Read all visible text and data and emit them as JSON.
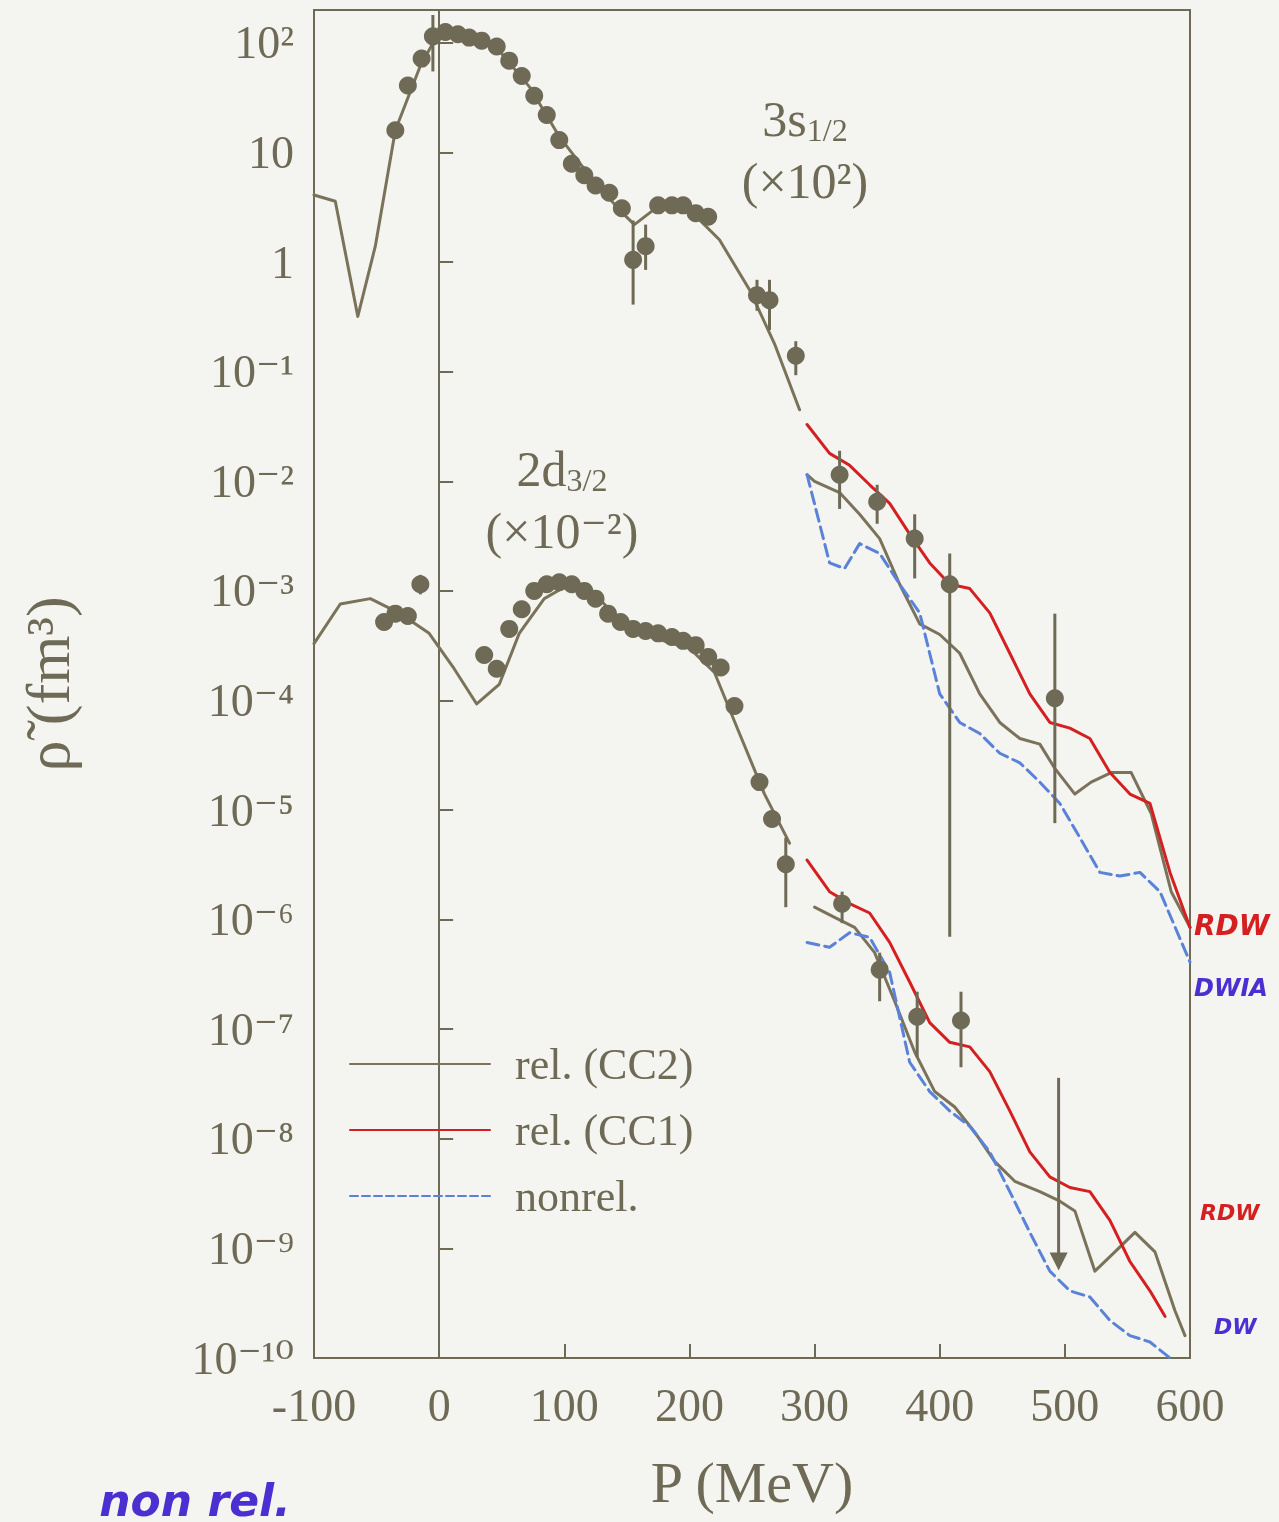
{
  "chart_data": {
    "type": "line",
    "xlabel": "P (MeV)",
    "ylabel": "ρ̃ (fm³)",
    "xlim": [
      -100,
      600
    ],
    "xticks": [
      -100,
      0,
      100,
      200,
      300,
      400,
      500,
      600
    ],
    "ylim": [
      1e-10,
      200
    ],
    "log": "y",
    "yticks": [
      {
        "value": 1e-10,
        "label": "10⁻¹⁰"
      },
      {
        "value": 1e-09,
        "label": "10⁻⁹"
      },
      {
        "value": 1e-08,
        "label": "10⁻⁸"
      },
      {
        "value": 1e-07,
        "label": "10⁻⁷"
      },
      {
        "value": 1e-06,
        "label": "10⁻⁶"
      },
      {
        "value": 1e-05,
        "label": "10⁻⁵"
      },
      {
        "value": 0.0001,
        "label": "10⁻⁴"
      },
      {
        "value": 0.001,
        "label": "10⁻³"
      },
      {
        "value": 0.01,
        "label": "10⁻²"
      },
      {
        "value": 0.1,
        "label": "10⁻¹"
      },
      1,
      10,
      {
        "value": 100,
        "label": "10²"
      }
    ],
    "legend": "bottom left",
    "series": [
      {
        "name": "rel. (CC2)",
        "color": "#7a735a",
        "line_style": "solid",
        "x": [
          -100,
          -83,
          -65,
          -51,
          -35,
          -15,
          0,
          24,
          48,
          72,
          96,
          120,
          144,
          156,
          176,
          200,
          224,
          248,
          268,
          288,
          291,
          294,
          300,
          320,
          336,
          352,
          368,
          384,
          400,
          416,
          432,
          448,
          464,
          480,
          492,
          508,
          521,
          537,
          553,
          569,
          585,
          600
        ],
        "values": [
          4.1,
          3.6,
          0.32,
          1.4,
          16,
          62,
          126,
          126,
          85,
          40,
          14,
          6.2,
          3.0,
          2.2,
          3.3,
          3.0,
          1.6,
          0.56,
          0.18,
          0.045,
          null,
          0.0115,
          0.01,
          0.0079,
          0.005,
          0.003,
          0.00115,
          0.0005,
          0.0004,
          0.00027,
          0.000115,
          6.3e-05,
          4.5e-05,
          4e-05,
          2.4e-05,
          1.4e-05,
          1.8e-05,
          2.2e-05,
          2.2e-05,
          9.3e-06,
          1.8e-06,
          8.5e-07
        ]
      },
      {
        "name": "rel. (CC1)",
        "color": "#d42020",
        "line_style": "solid",
        "x": [
          294,
          312,
          328,
          344,
          360,
          376,
          392,
          408,
          424,
          440,
          456,
          472,
          488,
          504,
          520,
          536,
          552,
          568,
          584,
          600
        ],
        "values": [
          0.033,
          0.018,
          0.014,
          0.0093,
          0.0063,
          0.0033,
          0.0018,
          0.00115,
          0.00105,
          0.00063,
          0.00027,
          0.000115,
          6.3e-05,
          5.6e-05,
          4.5e-05,
          2.2e-05,
          1.4e-05,
          1.15e-05,
          2.7e-06,
          8.5e-07
        ]
      },
      {
        "name": "nonrel.",
        "color": "#5a82d8",
        "line_style": "dashed",
        "x": [
          294,
          312,
          324,
          336,
          352,
          368,
          384,
          400,
          416,
          432,
          448,
          464,
          480,
          496,
          512,
          528,
          544,
          560,
          576,
          600
        ],
        "values": [
          0.0115,
          0.0018,
          0.0016,
          0.0027,
          0.0022,
          0.00115,
          0.00063,
          0.000115,
          6.3e-05,
          5e-05,
          3.3e-05,
          2.7e-05,
          1.8e-05,
          1.15e-05,
          5.6e-06,
          2.7e-06,
          2.5e-06,
          2.7e-06,
          1.8e-06,
          4.1e-07
        ]
      },
      {
        "type": "scatter",
        "color": "#6e6a55",
        "marker": "circle",
        "x": [
          -35,
          -25,
          -14,
          -5,
          5,
          15,
          24,
          34,
          46,
          56,
          66,
          76,
          86,
          96,
          106,
          116,
          125,
          136,
          146,
          155,
          165,
          175,
          186,
          195,
          205,
          215,
          254,
          264,
          285,
          320,
          350,
          380,
          408,
          492
        ],
        "values": [
          16,
          41,
          72,
          115,
          126,
          120,
          112,
          105,
          93,
          69,
          50,
          33,
          22,
          13,
          7.9,
          6.2,
          5.0,
          4.3,
          3.1,
          1.05,
          1.4,
          3.3,
          3.3,
          3.3,
          2.8,
          2.6,
          0.5,
          0.45,
          0.14,
          0.0115,
          0.0065,
          0.003,
          0.00115,
          0.000105
        ],
        "errors": [
          null,
          null,
          null,
          [
            55,
            180
          ],
          null,
          null,
          null,
          null,
          null,
          null,
          null,
          null,
          null,
          null,
          null,
          null,
          null,
          null,
          null,
          [
            0.41,
            2.4
          ],
          [
            0.85,
            2.2
          ],
          null,
          null,
          null,
          null,
          null,
          [
            0.36,
            0.69
          ],
          [
            0.24,
            0.69
          ],
          [
            0.093,
            0.19
          ],
          [
            0.0056,
            0.019
          ],
          [
            0.0041,
            0.0093
          ],
          [
            0.0013,
            0.005
          ],
          [
            7e-07,
            0.0022
          ],
          [
            7.6e-06,
            0.00062
          ]
        ]
      },
      {
        "color": "#7a735a",
        "line_style": "solid",
        "x": [
          -100,
          -79,
          -55,
          -31,
          -8,
          12,
          30,
          48,
          64,
          84,
          104,
          128,
          148,
          176,
          200,
          220,
          240,
          260,
          280,
          291,
          300,
          316,
          332,
          348,
          364,
          380,
          396,
          412,
          428,
          444,
          460,
          480,
          496,
          508,
          524,
          540,
          556,
          572,
          588,
          596
        ],
        "values": [
          0.00033,
          0.00076,
          0.00085,
          0.00062,
          0.00041,
          0.000195,
          9.3e-05,
          0.00014,
          0.00041,
          0.00085,
          0.00115,
          0.00085,
          0.00048,
          0.00036,
          0.0003,
          0.00018,
          5e-05,
          1.4e-05,
          5e-06,
          null,
          1.3e-06,
          1.05e-06,
          8.5e-07,
          5e-07,
          1.8e-07,
          6.2e-08,
          2.7e-08,
          1.95e-08,
          1.15e-08,
          6.2e-09,
          4.1e-09,
          3.3e-09,
          2.7e-09,
          2.2e-09,
          6.2e-10,
          9.3e-10,
          1.4e-09,
          9.3e-10,
          2.7e-10,
          1.6e-10
        ]
      },
      {
        "color": "#d42020",
        "line_style": "solid",
        "x": [
          294,
          312,
          328,
          344,
          360,
          376,
          392,
          408,
          424,
          440,
          456,
          472,
          488,
          504,
          520,
          536,
          552,
          568,
          580
        ],
        "values": [
          3.5e-06,
          1.8e-06,
          1.4e-06,
          1.15e-06,
          6.2e-07,
          2.7e-07,
          1.15e-07,
          7.6e-08,
          6.9e-08,
          4.1e-08,
          1.8e-08,
          7.6e-09,
          4.5e-09,
          3.6e-09,
          3.3e-09,
          1.8e-09,
          7.6e-10,
          4.1e-10,
          2.4e-10
        ]
      },
      {
        "color": "#5a82d8",
        "line_style": "dashed",
        "x": [
          294,
          312,
          328,
          344,
          360,
          376,
          392,
          408,
          424,
          440,
          456,
          472,
          488,
          504,
          520,
          536,
          552,
          568,
          584
        ],
        "values": [
          6.2e-07,
          5.6e-07,
          7.6e-07,
          6.9e-07,
          3.3e-07,
          5e-08,
          2.7e-08,
          1.8e-08,
          1.3e-08,
          7.6e-09,
          3.3e-09,
          1.4e-09,
          6.2e-10,
          4.1e-10,
          3.6e-10,
          2.2e-10,
          1.6e-10,
          1.4e-10,
          1e-10
        ]
      },
      {
        "type": "scatter",
        "color": "#6e6a55",
        "marker": "circle",
        "x": [
          -44,
          -35,
          -25,
          -15,
          36,
          46,
          56,
          66,
          76,
          86,
          96,
          106,
          116,
          125,
          135,
          145,
          155,
          165,
          175,
          186,
          195,
          205,
          215,
          225,
          236,
          256,
          266,
          277,
          322,
          352,
          382,
          417
        ],
        "values": [
          0.00052,
          0.00062,
          0.00059,
          0.00115,
          0.00026,
          0.000195,
          0.00045,
          0.00068,
          0.001,
          0.00115,
          0.0012,
          0.00115,
          0.001,
          0.00085,
          0.00062,
          0.00052,
          0.00045,
          0.00043,
          0.00041,
          0.00038,
          0.00035,
          0.00032,
          0.00025,
          0.0002,
          8.9e-05,
          1.8e-05,
          8.3e-06,
          3.2e-06,
          1.4e-06,
          3.5e-07,
          1.3e-07,
          1.2e-07
        ],
        "errors": [
          null,
          null,
          null,
          [
            0.00093,
            0.0014
          ],
          null,
          null,
          null,
          null,
          null,
          null,
          null,
          null,
          null,
          null,
          null,
          null,
          null,
          null,
          null,
          null,
          null,
          null,
          null,
          null,
          null,
          null,
          null,
          [
            1.3e-06,
            5.6e-06
          ],
          [
            9.3e-07,
            1.8e-06
          ],
          [
            1.8e-07,
            5e-07
          ],
          [
            5.6e-08,
            2.2e-07
          ],
          [
            4.5e-08,
            2.2e-07
          ]
        ]
      },
      {
        "type": "scatter",
        "color": "#6e6a55",
        "marker": "triangle",
        "x": [
          495
        ],
        "values": [
          7.6e-10
        ],
        "errors": [
          [
            7.6e-10,
            3.6e-08
          ]
        ]
      }
    ],
    "annotations": [
      "3s$_{1/2}$\n(×10²)",
      "2d$_{3/2}$\n(×10⁻²)",
      "RDW",
      "DWIA",
      "RDW",
      "DW",
      "non rel."
    ]
  }
}
